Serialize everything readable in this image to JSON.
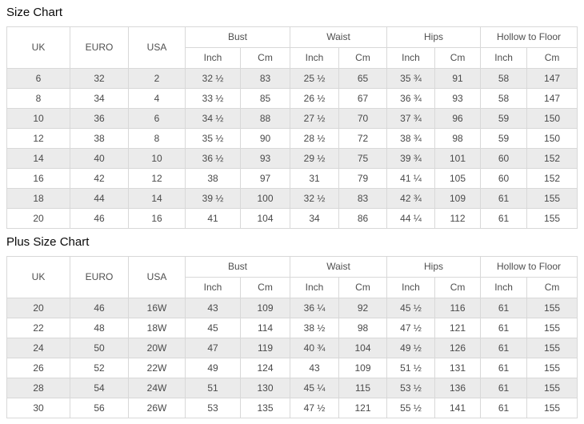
{
  "colors": {
    "page_background": "#ffffff",
    "row_stripe": "#ebebeb",
    "cell_border": "#d8d8d8",
    "text": "#4a4a4a",
    "title_text": "#0a0a0a"
  },
  "chart_data": [
    {
      "type": "table",
      "title": "Size Chart",
      "col_headers": [
        "UK",
        "EURO",
        "USA"
      ],
      "groups": [
        {
          "label": "Bust",
          "sub": [
            "Inch",
            "Cm"
          ]
        },
        {
          "label": "Waist",
          "sub": [
            "Inch",
            "Cm"
          ]
        },
        {
          "label": "Hips",
          "sub": [
            "Inch",
            "Cm"
          ]
        },
        {
          "label": "Hollow to Floor",
          "sub": [
            "Inch",
            "Cm"
          ]
        }
      ],
      "columns": [
        "UK",
        "EURO",
        "USA",
        "Bust Inch",
        "Bust Cm",
        "Waist Inch",
        "Waist Cm",
        "Hips Inch",
        "Hips Cm",
        "Hollow to Floor Inch",
        "Hollow to Floor Cm"
      ],
      "rows": [
        [
          "6",
          "32",
          "2",
          "32 ½",
          "83",
          "25 ½",
          "65",
          "35 ¾",
          "91",
          "58",
          "147"
        ],
        [
          "8",
          "34",
          "4",
          "33 ½",
          "85",
          "26 ½",
          "67",
          "36 ¾",
          "93",
          "58",
          "147"
        ],
        [
          "10",
          "36",
          "6",
          "34 ½",
          "88",
          "27 ½",
          "70",
          "37 ¾",
          "96",
          "59",
          "150"
        ],
        [
          "12",
          "38",
          "8",
          "35 ½",
          "90",
          "28 ½",
          "72",
          "38 ¾",
          "98",
          "59",
          "150"
        ],
        [
          "14",
          "40",
          "10",
          "36 ½",
          "93",
          "29 ½",
          "75",
          "39 ¾",
          "101",
          "60",
          "152"
        ],
        [
          "16",
          "42",
          "12",
          "38",
          "97",
          "31",
          "79",
          "41 ¼",
          "105",
          "60",
          "152"
        ],
        [
          "18",
          "44",
          "14",
          "39 ½",
          "100",
          "32 ½",
          "83",
          "42 ¾",
          "109",
          "61",
          "155"
        ],
        [
          "20",
          "46",
          "16",
          "41",
          "104",
          "34",
          "86",
          "44 ¼",
          "112",
          "61",
          "155"
        ]
      ]
    },
    {
      "type": "table",
      "title": "Plus Size Chart",
      "col_headers": [
        "UK",
        "EURO",
        "USA"
      ],
      "groups": [
        {
          "label": "Bust",
          "sub": [
            "Inch",
            "Cm"
          ]
        },
        {
          "label": "Waist",
          "sub": [
            "Inch",
            "Cm"
          ]
        },
        {
          "label": "Hips",
          "sub": [
            "Inch",
            "Cm"
          ]
        },
        {
          "label": "Hollow to Floor",
          "sub": [
            "Inch",
            "Cm"
          ]
        }
      ],
      "columns": [
        "UK",
        "EURO",
        "USA",
        "Bust Inch",
        "Bust Cm",
        "Waist Inch",
        "Waist Cm",
        "Hips Inch",
        "Hips Cm",
        "Hollow to Floor Inch",
        "Hollow to Floor Cm"
      ],
      "rows": [
        [
          "20",
          "46",
          "16W",
          "43",
          "109",
          "36 ¼",
          "92",
          "45 ½",
          "116",
          "61",
          "155"
        ],
        [
          "22",
          "48",
          "18W",
          "45",
          "114",
          "38 ½",
          "98",
          "47 ½",
          "121",
          "61",
          "155"
        ],
        [
          "24",
          "50",
          "20W",
          "47",
          "119",
          "40 ¾",
          "104",
          "49 ½",
          "126",
          "61",
          "155"
        ],
        [
          "26",
          "52",
          "22W",
          "49",
          "124",
          "43",
          "109",
          "51 ½",
          "131",
          "61",
          "155"
        ],
        [
          "28",
          "54",
          "24W",
          "51",
          "130",
          "45 ¼",
          "115",
          "53 ½",
          "136",
          "61",
          "155"
        ],
        [
          "30",
          "56",
          "26W",
          "53",
          "135",
          "47 ½",
          "121",
          "55 ½",
          "141",
          "61",
          "155"
        ]
      ]
    }
  ]
}
